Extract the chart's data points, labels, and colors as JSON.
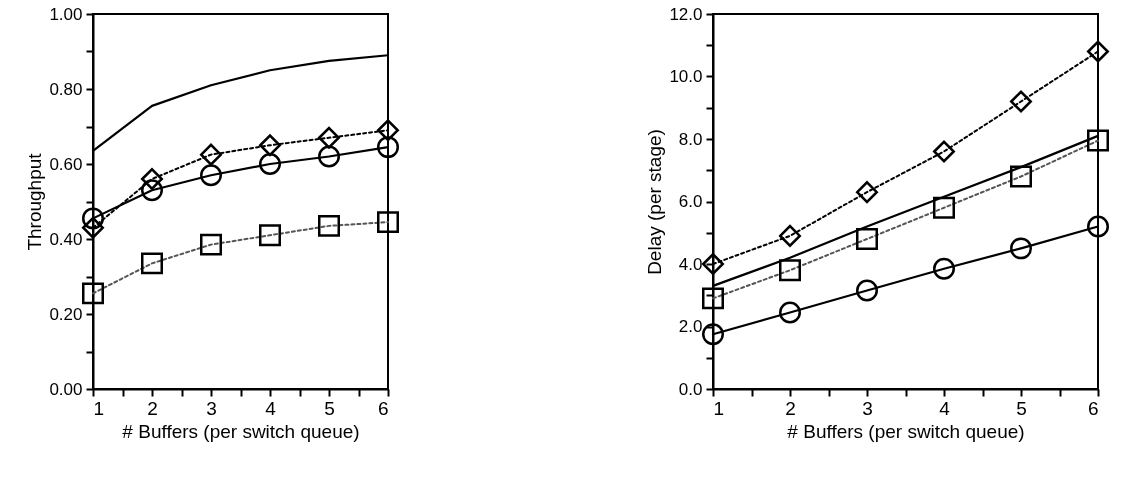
{
  "chart_data": [
    {
      "type": "line",
      "xlabel": "# Buffers (per switch queue)",
      "ylabel": "Throughput",
      "x": [
        1,
        2,
        3,
        4,
        5,
        6
      ],
      "grid": false,
      "xlim": [
        1,
        6
      ],
      "xticks": [
        1,
        {
          "value": 1.5,
          "label": null
        },
        2,
        {
          "value": 2.5,
          "label": null
        },
        3,
        {
          "value": 3.5,
          "label": null
        },
        4,
        {
          "value": 4.5,
          "label": null
        },
        5,
        {
          "value": 5.5,
          "label": null
        },
        6
      ],
      "ylim": [
        0,
        1
      ],
      "yticks": [
        {
          "value": 0,
          "label": "0.00"
        },
        {
          "value": 0.1,
          "label": null
        },
        {
          "value": 0.2,
          "label": "0.20"
        },
        {
          "value": 0.3,
          "label": null
        },
        {
          "value": 0.4,
          "label": "0.40"
        },
        {
          "value": 0.5,
          "label": null
        },
        {
          "value": 0.6,
          "label": "0.60"
        },
        {
          "value": 0.7,
          "label": null
        },
        {
          "value": 0.8,
          "label": "0.80"
        },
        {
          "value": 0.9,
          "label": null
        },
        {
          "value": 1,
          "label": "1.00"
        }
      ],
      "series": [
        {
          "color": "#000000",
          "marker": "none",
          "line_style": "solid",
          "values": [
            0.635,
            0.755,
            0.81,
            0.85,
            0.875,
            0.89
          ]
        },
        {
          "color": "#000000",
          "marker": "circle",
          "line_style": "solid",
          "values": [
            0.455,
            0.53,
            0.57,
            0.6,
            0.62,
            0.645
          ]
        },
        {
          "color": "#000000",
          "marker": "diamond",
          "line_style": "dotted",
          "values": [
            0.43,
            0.56,
            0.625,
            0.65,
            0.67,
            0.69
          ]
        },
        {
          "color": "#555555",
          "marker": "square",
          "line_style": "dotted",
          "values": [
            0.255,
            0.335,
            0.385,
            0.41,
            0.435,
            0.445
          ]
        }
      ]
    },
    {
      "type": "line",
      "xlabel": "# Buffers (per switch queue)",
      "ylabel": "Delay (per stage)",
      "x": [
        1,
        2,
        3,
        4,
        5,
        6
      ],
      "grid": false,
      "xlim": [
        1,
        6
      ],
      "xticks": [
        1,
        {
          "value": 1.5,
          "label": null
        },
        2,
        {
          "value": 2.5,
          "label": null
        },
        3,
        {
          "value": 3.5,
          "label": null
        },
        4,
        {
          "value": 4.5,
          "label": null
        },
        5,
        {
          "value": 5.5,
          "label": null
        },
        6
      ],
      "ylim": [
        0,
        12
      ],
      "yticks": [
        {
          "value": 0,
          "label": "0.0"
        },
        {
          "value": 1,
          "label": null
        },
        {
          "value": 2,
          "label": "2.0"
        },
        {
          "value": 3,
          "label": null
        },
        {
          "value": 4,
          "label": "4.0"
        },
        {
          "value": 5,
          "label": null
        },
        {
          "value": 6,
          "label": "6.0"
        },
        {
          "value": 7,
          "label": null
        },
        {
          "value": 8,
          "label": "8.0"
        },
        {
          "value": 9,
          "label": null
        },
        {
          "value": 10,
          "label": "10.0"
        },
        {
          "value": 11,
          "label": null
        },
        {
          "value": 12,
          "label": "12.0"
        }
      ],
      "series": [
        {
          "color": "#000000",
          "marker": "none",
          "line_style": "solid",
          "values": [
            3.3,
            4.2,
            5.2,
            6.15,
            7.1,
            8.1
          ]
        },
        {
          "color": "#000000",
          "marker": "circle",
          "line_style": "solid",
          "values": [
            1.75,
            2.45,
            3.15,
            3.85,
            4.5,
            5.2
          ]
        },
        {
          "color": "#000000",
          "marker": "diamond",
          "line_style": "dotted",
          "values": [
            4.0,
            4.9,
            6.3,
            7.6,
            9.2,
            10.8
          ]
        },
        {
          "color": "#555555",
          "marker": "square",
          "line_style": "dotted",
          "values": [
            2.9,
            3.8,
            4.8,
            5.8,
            6.8,
            7.95
          ]
        }
      ]
    }
  ]
}
